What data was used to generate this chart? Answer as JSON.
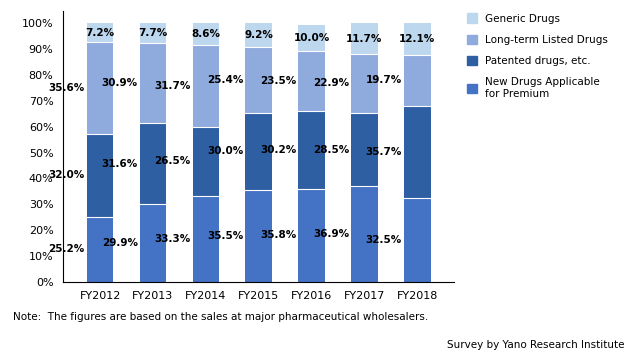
{
  "years": [
    "FY2012",
    "FY2013",
    "FY2014",
    "FY2015",
    "FY2016",
    "FY2017",
    "FY2018"
  ],
  "new_drugs": [
    25.2,
    29.9,
    33.3,
    35.5,
    35.8,
    36.9,
    32.5
  ],
  "patented": [
    32.0,
    31.6,
    26.5,
    30.0,
    30.2,
    28.5,
    35.7
  ],
  "longterm": [
    35.6,
    30.9,
    31.7,
    25.4,
    23.5,
    22.9,
    19.7
  ],
  "generic": [
    7.2,
    7.7,
    8.6,
    9.2,
    10.0,
    11.7,
    12.1
  ],
  "colors": {
    "new_drugs": "#4472C4",
    "patented": "#2E5FA3",
    "longterm": "#8FAADC",
    "generic": "#BDD7EE"
  },
  "legend_labels": [
    "Generic Drugs",
    "Long-term Listed Drugs",
    "Patented drugs, etc.",
    "New Drugs Applicable\nfor Premium"
  ],
  "note": "Note:  The figures are based on the sales at major pharmaceutical wholesalers.",
  "source": "Survey by Yano Research Institute",
  "ylim": [
    0,
    100
  ],
  "yticks": [
    0,
    10,
    20,
    30,
    40,
    50,
    60,
    70,
    80,
    90,
    100
  ]
}
